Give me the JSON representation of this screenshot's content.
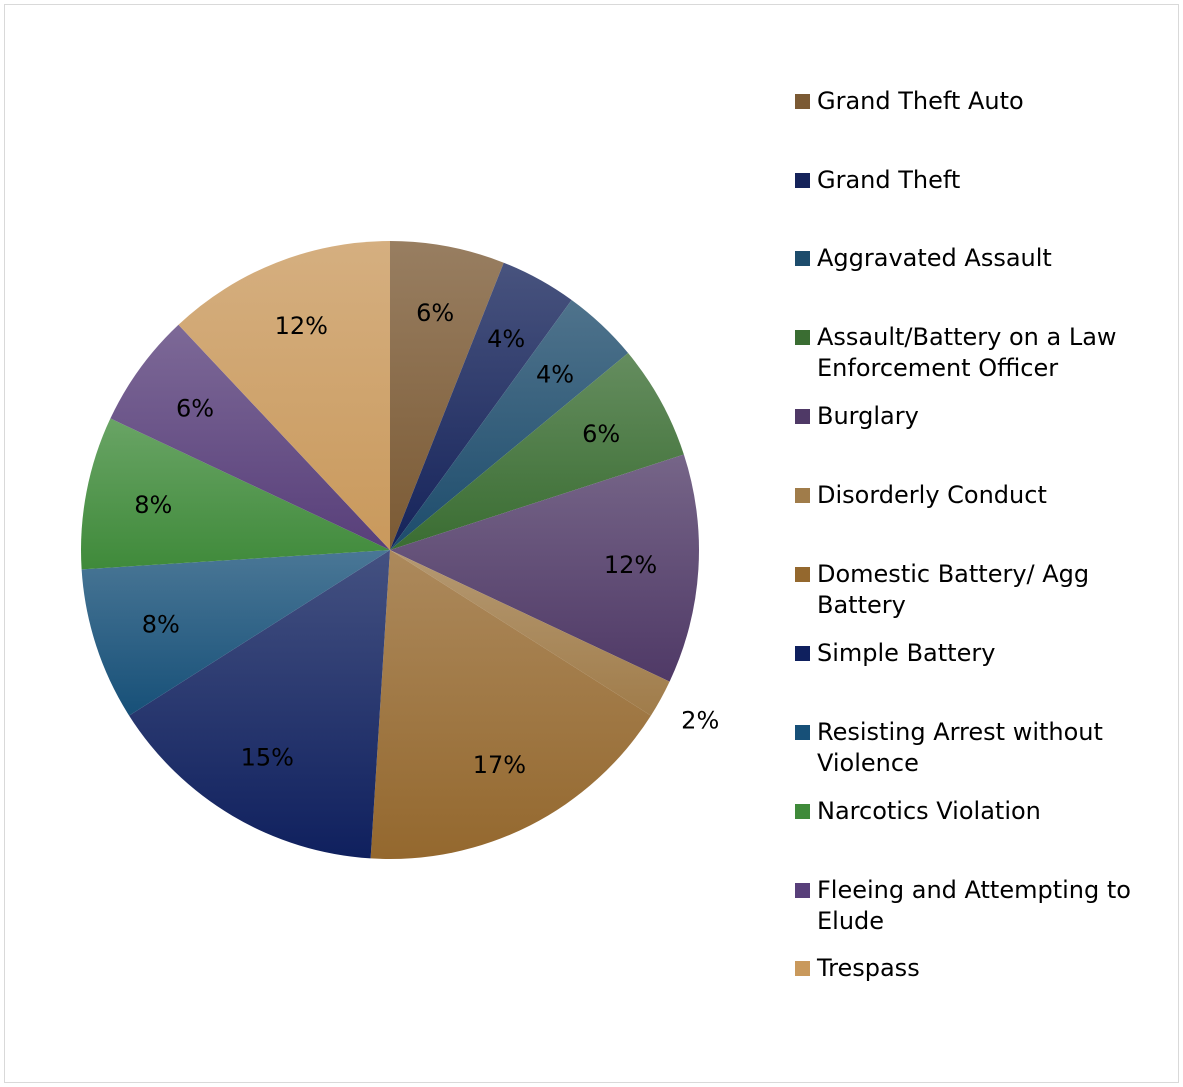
{
  "chart_data": {
    "type": "pie",
    "title": "",
    "legend_position": "right",
    "slices": [
      {
        "name": "Grand Theft Auto",
        "label": "6%",
        "value": 6,
        "color": "#7b5a34"
      },
      {
        "name": "Grand Theft",
        "label": "4%",
        "value": 4,
        "color": "#15235a"
      },
      {
        "name": "Aggravated Assault",
        "label": "4%",
        "value": 4,
        "color": "#1d4c6c"
      },
      {
        "name": "Assault/Battery on a Law Enforcement Officer",
        "label": "6%",
        "value": 6,
        "color": "#3a6d32"
      },
      {
        "name": "Burglary",
        "label": "12%",
        "value": 12,
        "color": "#4f3966"
      },
      {
        "name": "Disorderly Conduct",
        "label": "2%",
        "value": 2,
        "color": "#a07c4a"
      },
      {
        "name": "Domestic Battery/ Agg Battery",
        "label": "17%",
        "value": 17,
        "color": "#94682e"
      },
      {
        "name": "Simple Battery",
        "label": "15%",
        "value": 15,
        "color": "#0f205e"
      },
      {
        "name": "Resisting Arrest without Violence",
        "label": "8%",
        "value": 8,
        "color": "#175078"
      },
      {
        "name": "Narcotics Violation",
        "label": "8%",
        "value": 8,
        "color": "#3f8a3a"
      },
      {
        "name": "Fleeing and Attempting to Elude",
        "label": "6%",
        "value": 6,
        "color": "#583f7a"
      },
      {
        "name": "Trespass",
        "label": "12%",
        "value": 12,
        "color": "#c9995c"
      }
    ]
  },
  "legend": {
    "items": [
      {
        "lines": [
          "Grand Theft Auto"
        ],
        "color": "#7b5a34"
      },
      {
        "lines": [
          "Grand Theft"
        ],
        "color": "#15235a"
      },
      {
        "lines": [
          "Aggravated Assault"
        ],
        "color": "#1d4c6c"
      },
      {
        "lines": [
          "Assault/Battery on a Law",
          "Enforcement Officer"
        ],
        "color": "#3a6d32"
      },
      {
        "lines": [
          "Burglary"
        ],
        "color": "#4f3966"
      },
      {
        "lines": [
          "Disorderly Conduct"
        ],
        "color": "#a07c4a"
      },
      {
        "lines": [
          "Domestic Battery/ Agg",
          "Battery"
        ],
        "color": "#94682e"
      },
      {
        "lines": [
          "Simple Battery"
        ],
        "color": "#0f205e"
      },
      {
        "lines": [
          "Resisting Arrest without",
          "Violence"
        ],
        "color": "#175078"
      },
      {
        "lines": [
          "Narcotics Violation"
        ],
        "color": "#3f8a3a"
      },
      {
        "lines": [
          "Fleeing and Attempting to",
          "Elude"
        ],
        "color": "#583f7a"
      },
      {
        "lines": [
          "Trespass"
        ],
        "color": "#c9995c"
      }
    ]
  }
}
